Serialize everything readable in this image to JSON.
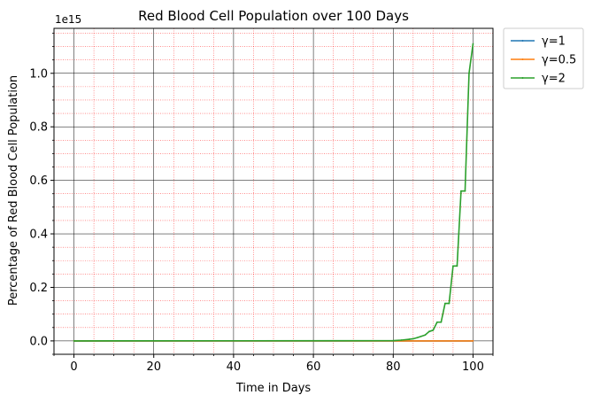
{
  "chart_data": {
    "type": "line",
    "title": "Red Blood Cell Population over 100 Days",
    "xlabel": "Time in Days",
    "ylabel": "Percentage of Red Blood Cell Population",
    "y_offset_label": "1e15",
    "y_scale": 1000000000000000.0,
    "xlim": [
      -5,
      105
    ],
    "ylim": [
      -0.05,
      1.168
    ],
    "x_ticks": [
      0,
      20,
      40,
      60,
      80,
      100
    ],
    "y_ticks": [
      0.0,
      0.2,
      0.4,
      0.6,
      0.8,
      1.0
    ],
    "x_tick_labels": [
      "0",
      "20",
      "40",
      "60",
      "80",
      "100"
    ],
    "y_tick_labels": [
      "0.0",
      "0.2",
      "0.4",
      "0.6",
      "0.8",
      "1.0"
    ],
    "grid": true,
    "legend_position": "outside-top-right",
    "series": [
      {
        "name": "γ=1",
        "color": "#1f77b4",
        "x": [
          0,
          100
        ],
        "y": [
          0,
          0
        ]
      },
      {
        "name": "γ=0.5",
        "color": "#ff7f0e",
        "x": [
          0,
          100
        ],
        "y": [
          0,
          0
        ]
      },
      {
        "name": "γ=2",
        "color": "#2ca02c",
        "x": [
          0,
          80,
          82,
          84,
          85,
          86,
          87,
          88,
          89,
          90,
          91,
          92,
          93,
          94,
          95,
          96,
          97,
          98,
          99,
          100
        ],
        "y": [
          0,
          0.001,
          0.003,
          0.006,
          0.008,
          0.012,
          0.017,
          0.022,
          0.035,
          0.04,
          0.07,
          0.07,
          0.14,
          0.14,
          0.28,
          0.28,
          0.56,
          0.56,
          1.0,
          1.11
        ]
      }
    ]
  }
}
